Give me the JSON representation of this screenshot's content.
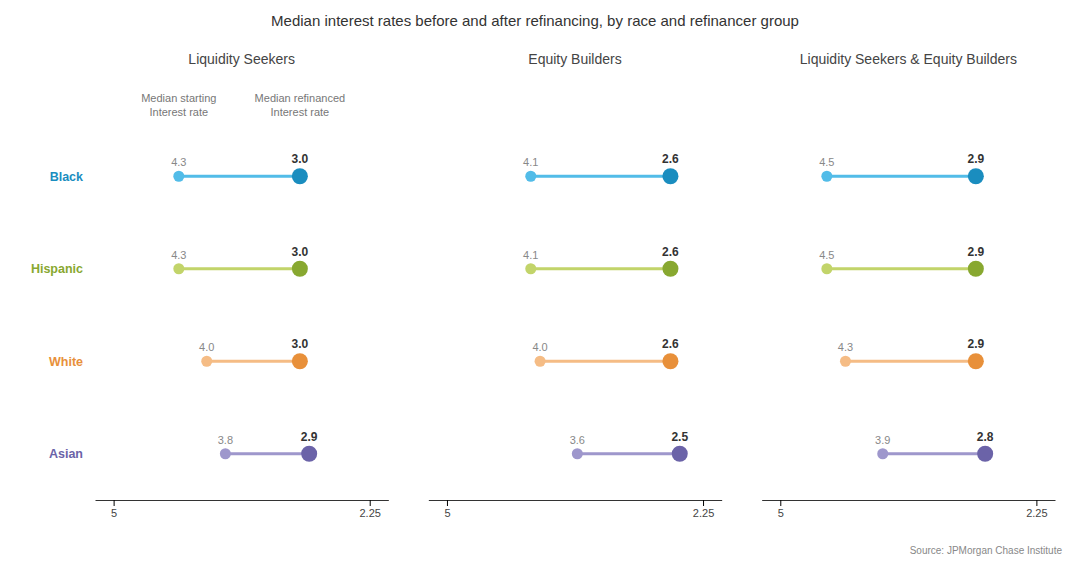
{
  "title": "Median interest rates before and after refinancing, by race and refinancer group",
  "annotations": [
    "Source: JPMorgan Chase Institute"
  ],
  "chart_data": [
    {
      "type": "dumbbell",
      "title": "Liquidity Seekers",
      "orientation": "horizontal",
      "categories": [
        "Black",
        "Hispanic",
        "White",
        "Asian"
      ],
      "series": [
        {
          "name": "Median starting\nInterest rate",
          "colors": [
            "#52BCE8",
            "#C2D46A",
            "#F5BC85",
            "#9E97CC"
          ],
          "values": [
            4.3,
            4.3,
            4.0,
            3.8
          ],
          "value_labels": [
            "4.3",
            "4.3",
            "4.0",
            "3.8"
          ]
        },
        {
          "name": "Median refinanced\nInterest rate",
          "colors": [
            "#1A8DBF",
            "#88A830",
            "#E8903A",
            "#6B63A8"
          ],
          "values": [
            3.0,
            3.0,
            3.0,
            2.9
          ],
          "value_labels": [
            "3.0",
            "3.0",
            "3.0",
            "2.9"
          ]
        }
      ],
      "xlim": [
        5.2,
        2.05
      ],
      "xticks": [
        5,
        2.25
      ],
      "grid": false,
      "data_labels": true
    },
    {
      "type": "dumbbell",
      "title": "Equity Builders",
      "orientation": "horizontal",
      "categories": [
        "Black",
        "Hispanic",
        "White",
        "Asian"
      ],
      "series": [
        {
          "colors": [
            "#52BCE8",
            "#C2D46A",
            "#F5BC85",
            "#9E97CC"
          ],
          "values": [
            4.1,
            4.1,
            4.0,
            3.6
          ],
          "value_labels": [
            "4.1",
            "4.1",
            "4.0",
            "3.6"
          ]
        },
        {
          "colors": [
            "#1A8DBF",
            "#88A830",
            "#E8903A",
            "#6B63A8"
          ],
          "values": [
            2.6,
            2.6,
            2.6,
            2.5
          ],
          "value_labels": [
            "2.6",
            "2.6",
            "2.6",
            "2.5"
          ]
        }
      ],
      "xlim": [
        5.2,
        2.05
      ],
      "xticks": [
        5,
        2.25
      ],
      "grid": false,
      "data_labels": true,
      "tick_labels": "x"
    },
    {
      "type": "dumbbell",
      "title": "Liquidity Seekers & Equity Builders",
      "orientation": "horizontal",
      "categories": [
        "Black",
        "Hispanic",
        "White",
        "Asian"
      ],
      "series": [
        {
          "colors": [
            "#52BCE8",
            "#C2D46A",
            "#F5BC85",
            "#9E97CC"
          ],
          "values": [
            4.5,
            4.5,
            4.3,
            3.9
          ],
          "value_labels": [
            "4.5",
            "4.5",
            "4.3",
            "3.9"
          ]
        },
        {
          "colors": [
            "#1A8DBF",
            "#88A830",
            "#E8903A",
            "#6B63A8"
          ],
          "values": [
            2.9,
            2.9,
            2.9,
            2.8
          ],
          "value_labels": [
            "2.9",
            "2.9",
            "2.9",
            "2.8"
          ]
        }
      ],
      "xlim": [
        5.2,
        2.05
      ],
      "xticks": [
        5,
        2.25
      ],
      "grid": false,
      "data_labels": true,
      "tick_labels": "x"
    }
  ]
}
